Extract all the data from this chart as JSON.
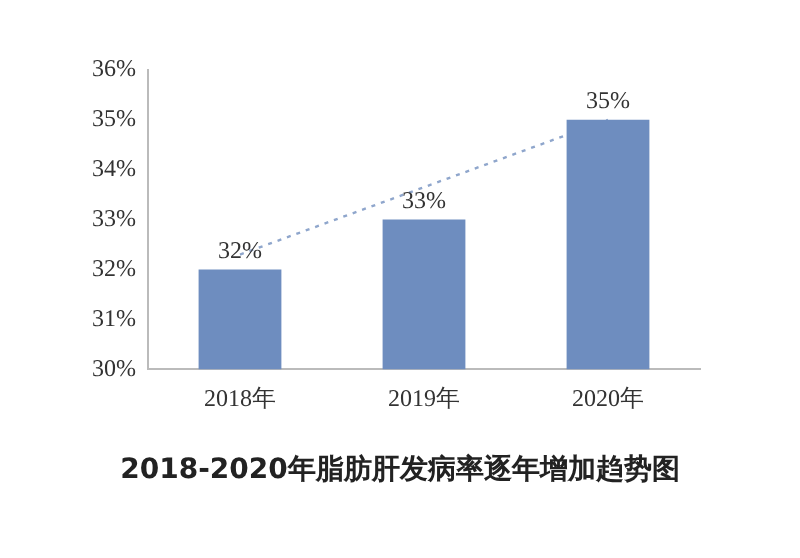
{
  "chart_data": {
    "type": "bar",
    "title": "2018-2020年脂肪肝发病率逐年增加趋势图",
    "categories": [
      "2018年",
      "2019年",
      "2020年"
    ],
    "series": [
      {
        "color": "#6e8dbf",
        "values": [
          32,
          33,
          35
        ]
      },
      {
        "type": "line",
        "color": "#8fa6cc",
        "line_style": "dotted",
        "marker": "none",
        "values": [
          32.3,
          null,
          35
        ]
      }
    ],
    "ylim": [
      30,
      36
    ],
    "yticks": [
      {
        "value": 30,
        "label": "30%"
      },
      {
        "value": 31,
        "label": "31%"
      },
      {
        "value": 32,
        "label": "32%"
      },
      {
        "value": 33,
        "label": "33%"
      },
      {
        "value": 34,
        "label": "34%"
      },
      {
        "value": 35,
        "label": "35%"
      },
      {
        "value": 36,
        "label": "36%"
      }
    ],
    "value_labels": [
      "32%",
      "33%",
      "35%"
    ],
    "grid": false,
    "legend": false
  }
}
